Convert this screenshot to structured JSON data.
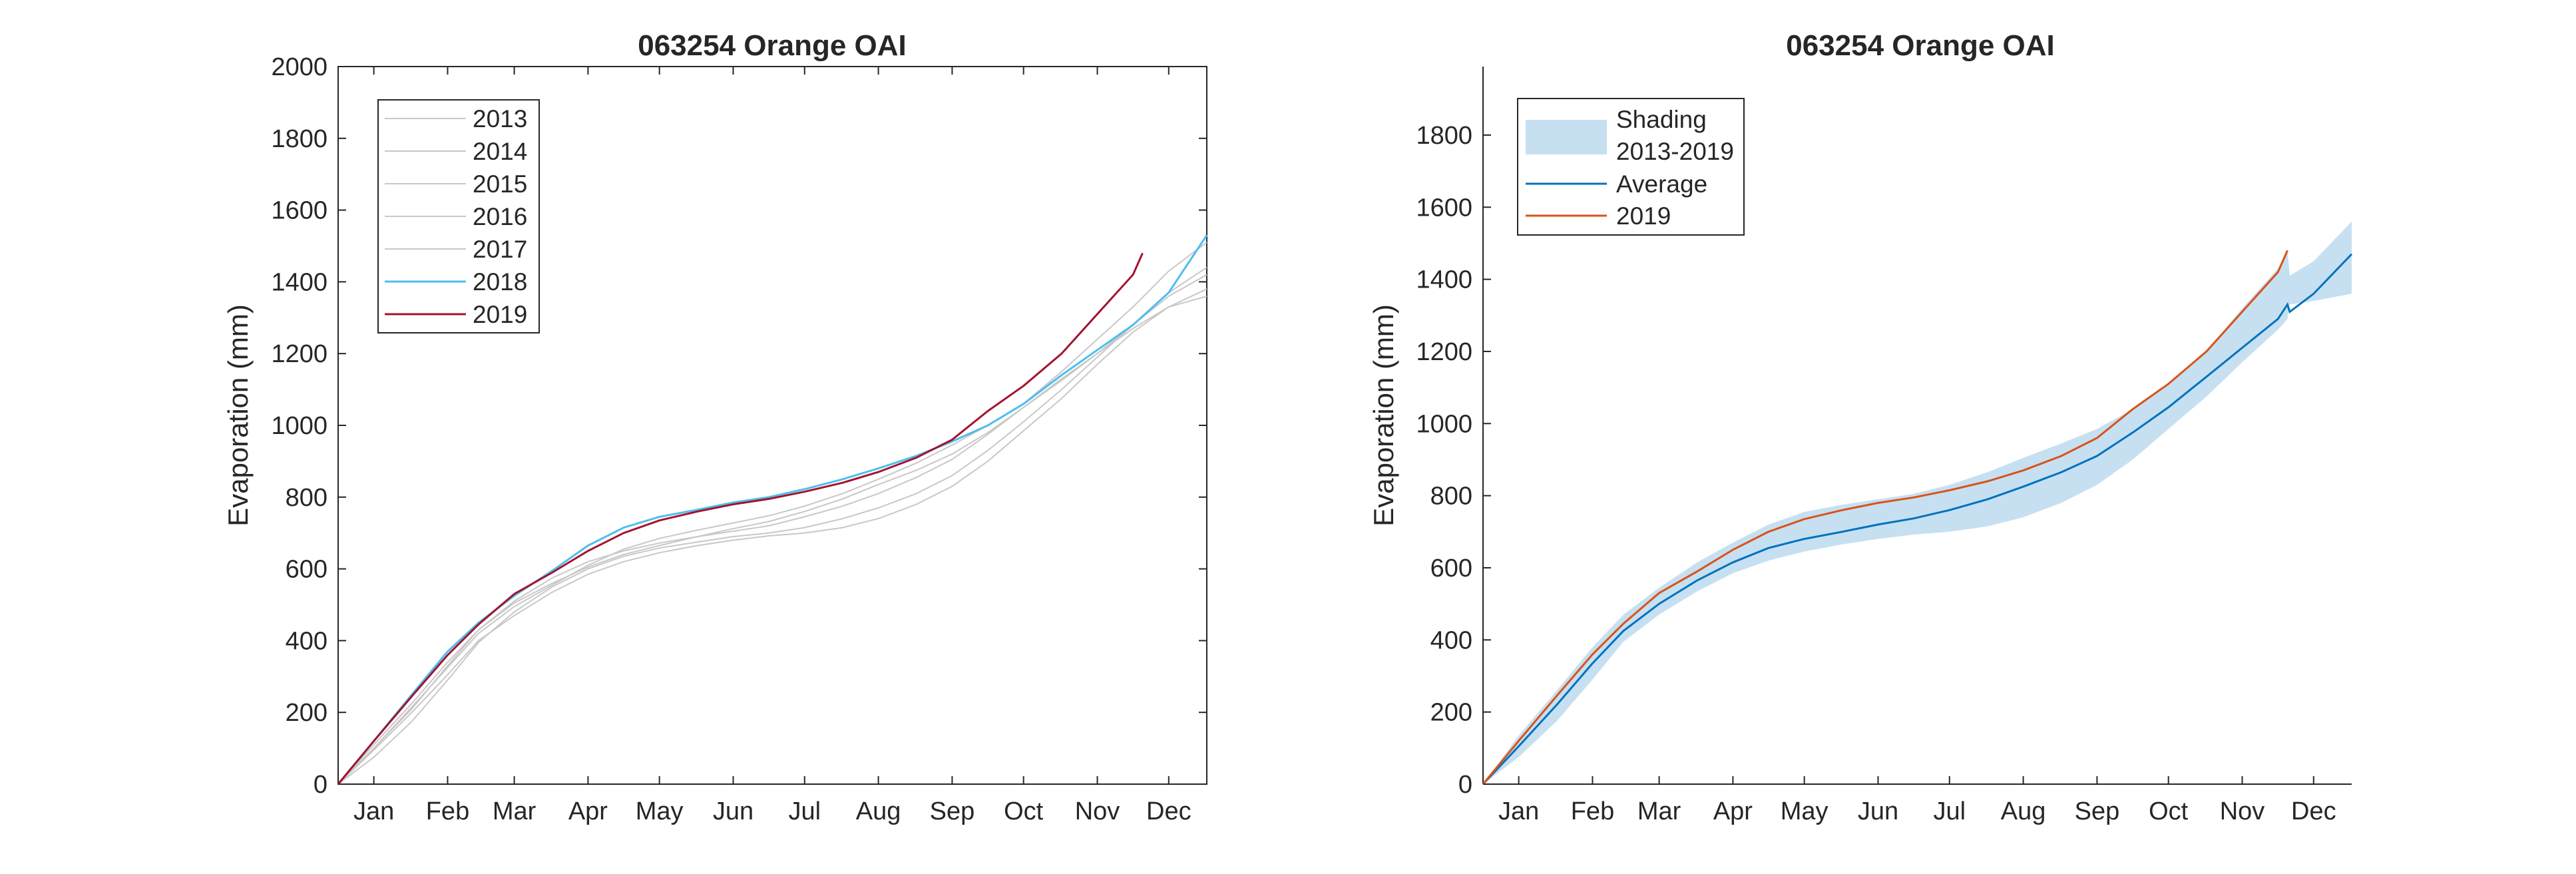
{
  "chart_data": [
    {
      "type": "line",
      "title": "063254 Orange OAI",
      "xlabel": "",
      "ylabel": "Evaporation (mm)",
      "x_tick_labels": [
        "Jan",
        "Feb",
        "Mar",
        "Apr",
        "May",
        "Jun",
        "Jul",
        "Aug",
        "Sep",
        "Oct",
        "Nov",
        "Dec"
      ],
      "x_tick_days": [
        15,
        46,
        74,
        105,
        135,
        166,
        196,
        227,
        258,
        288,
        319,
        349
      ],
      "xlim": [
        0,
        365
      ],
      "ylim": [
        0,
        2000
      ],
      "y_ticks": [
        0,
        200,
        400,
        600,
        800,
        1000,
        1200,
        1400,
        1600,
        1800,
        2000
      ],
      "legend_position": "top-left",
      "grid": false,
      "series": [
        {
          "name": "2013",
          "color": "#c8c8c8",
          "x": [
            0,
            15,
            31,
            46,
            59,
            74,
            90,
            105,
            120,
            135,
            151,
            166,
            181,
            196,
            212,
            227,
            243,
            258,
            273,
            288,
            304,
            319,
            334,
            349,
            365
          ],
          "y": [
            0,
            100,
            210,
            330,
            430,
            510,
            575,
            620,
            650,
            672,
            690,
            705,
            720,
            745,
            775,
            810,
            855,
            905,
            975,
            1050,
            1130,
            1200,
            1270,
            1330,
            1380
          ]
        },
        {
          "name": "2014",
          "color": "#c8c8c8",
          "x": [
            0,
            15,
            31,
            46,
            59,
            74,
            90,
            105,
            120,
            135,
            151,
            166,
            181,
            196,
            212,
            227,
            243,
            258,
            273,
            288,
            304,
            319,
            334,
            349,
            365
          ],
          "y": [
            0,
            75,
            175,
            290,
            395,
            480,
            550,
            600,
            635,
            658,
            675,
            690,
            700,
            715,
            740,
            770,
            810,
            860,
            930,
            1010,
            1100,
            1190,
            1280,
            1360,
            1420
          ]
        },
        {
          "name": "2015",
          "color": "#c8c8c8",
          "x": [
            0,
            15,
            31,
            46,
            59,
            74,
            90,
            105,
            120,
            135,
            151,
            166,
            181,
            196,
            212,
            227,
            243,
            258,
            273,
            288,
            304,
            319,
            334,
            349,
            365
          ],
          "y": [
            0,
            95,
            200,
            305,
            400,
            470,
            535,
            585,
            620,
            645,
            665,
            680,
            692,
            700,
            715,
            740,
            780,
            830,
            900,
            985,
            1075,
            1170,
            1260,
            1330,
            1360
          ]
        },
        {
          "name": "2016",
          "color": "#c8c8c8",
          "x": [
            0,
            15,
            31,
            46,
            59,
            74,
            90,
            105,
            120,
            135,
            151,
            166,
            181,
            196,
            212,
            227,
            243,
            258,
            273,
            288,
            304,
            319,
            334,
            349,
            365
          ],
          "y": [
            0,
            110,
            225,
            340,
            430,
            505,
            560,
            605,
            640,
            665,
            690,
            712,
            732,
            760,
            795,
            835,
            875,
            920,
            980,
            1050,
            1125,
            1200,
            1280,
            1370,
            1440
          ]
        },
        {
          "name": "2017",
          "color": "#c8c8c8",
          "x": [
            0,
            15,
            31,
            46,
            59,
            74,
            90,
            105,
            120,
            135,
            151,
            166,
            181,
            196,
            212,
            227,
            243,
            258,
            273,
            288,
            304,
            319,
            334,
            349,
            365
          ],
          "y": [
            0,
            100,
            215,
            325,
            420,
            495,
            555,
            610,
            655,
            685,
            708,
            728,
            748,
            775,
            810,
            850,
            895,
            945,
            1000,
            1060,
            1150,
            1240,
            1330,
            1430,
            1510
          ]
        },
        {
          "name": "2018",
          "color": "#4dbeee",
          "x": [
            0,
            15,
            31,
            46,
            59,
            74,
            90,
            105,
            120,
            135,
            151,
            166,
            181,
            196,
            212,
            227,
            243,
            258,
            273,
            288,
            304,
            319,
            334,
            349,
            365
          ],
          "y": [
            0,
            120,
            250,
            370,
            450,
            525,
            595,
            665,
            715,
            745,
            765,
            785,
            800,
            822,
            850,
            880,
            915,
            955,
            1000,
            1060,
            1140,
            1210,
            1280,
            1370,
            1530
          ]
        },
        {
          "name": "2019",
          "color": "#a2142f",
          "x": [
            0,
            15,
            31,
            46,
            59,
            74,
            90,
            105,
            120,
            135,
            151,
            166,
            181,
            196,
            212,
            227,
            243,
            258,
            273,
            288,
            304,
            319,
            334,
            338
          ],
          "y": [
            0,
            120,
            245,
            360,
            445,
            530,
            590,
            650,
            700,
            735,
            760,
            780,
            795,
            815,
            840,
            870,
            910,
            960,
            1040,
            1110,
            1200,
            1310,
            1420,
            1480
          ]
        }
      ]
    },
    {
      "type": "area",
      "title": "063254 Orange OAI",
      "xlabel": "",
      "ylabel": "Evaporation (mm)",
      "x_tick_labels": [
        "Jan",
        "Feb",
        "Mar",
        "Apr",
        "May",
        "Jun",
        "Jul",
        "Aug",
        "Sep",
        "Oct",
        "Nov",
        "Dec"
      ],
      "x_tick_days": [
        15,
        46,
        74,
        105,
        135,
        166,
        196,
        227,
        258,
        288,
        319,
        349
      ],
      "xlim": [
        0,
        365
      ],
      "ylim": [
        0,
        1990
      ],
      "y_ticks": [
        0,
        200,
        400,
        600,
        800,
        1000,
        1200,
        1400,
        1600,
        1800
      ],
      "legend_position": "top-left",
      "grid": false,
      "shading": {
        "name": "Shading 2013-2019",
        "legend_lines": [
          "Shading",
          "2013-2019"
        ],
        "color": "#c6e0f2",
        "x": [
          0,
          15,
          31,
          46,
          59,
          74,
          90,
          105,
          120,
          135,
          151,
          166,
          181,
          196,
          212,
          227,
          243,
          258,
          273,
          288,
          304,
          319,
          334,
          338,
          339,
          349,
          365
        ],
        "y_low": [
          0,
          75,
          175,
          290,
          395,
          470,
          535,
          585,
          620,
          645,
          665,
          680,
          692,
          700,
          715,
          740,
          780,
          830,
          900,
          985,
          1075,
          1170,
          1260,
          1290,
          1330,
          1340,
          1360
        ],
        "y_high": [
          0,
          135,
          260,
          380,
          470,
          545,
          615,
          670,
          720,
          755,
          775,
          790,
          805,
          830,
          865,
          905,
          945,
          985,
          1040,
          1110,
          1200,
          1320,
          1430,
          1480,
          1410,
          1450,
          1560
        ]
      },
      "series": [
        {
          "name": "Average",
          "color": "#0072bd",
          "x": [
            0,
            15,
            31,
            46,
            59,
            74,
            90,
            105,
            120,
            135,
            151,
            166,
            181,
            196,
            212,
            227,
            243,
            258,
            273,
            288,
            304,
            319,
            334,
            338,
            339,
            349,
            365
          ],
          "y": [
            0,
            105,
            220,
            335,
            425,
            500,
            565,
            615,
            655,
            680,
            700,
            720,
            737,
            760,
            790,
            825,
            865,
            910,
            975,
            1045,
            1130,
            1210,
            1290,
            1330,
            1310,
            1360,
            1470
          ]
        },
        {
          "name": "2019",
          "color": "#d95319",
          "x": [
            0,
            15,
            31,
            46,
            59,
            74,
            90,
            105,
            120,
            135,
            151,
            166,
            181,
            196,
            212,
            227,
            243,
            258,
            273,
            288,
            304,
            319,
            334,
            338
          ],
          "y": [
            0,
            120,
            245,
            360,
            445,
            530,
            590,
            650,
            700,
            735,
            760,
            780,
            795,
            815,
            840,
            870,
            910,
            960,
            1040,
            1110,
            1200,
            1310,
            1420,
            1480
          ]
        }
      ]
    }
  ]
}
